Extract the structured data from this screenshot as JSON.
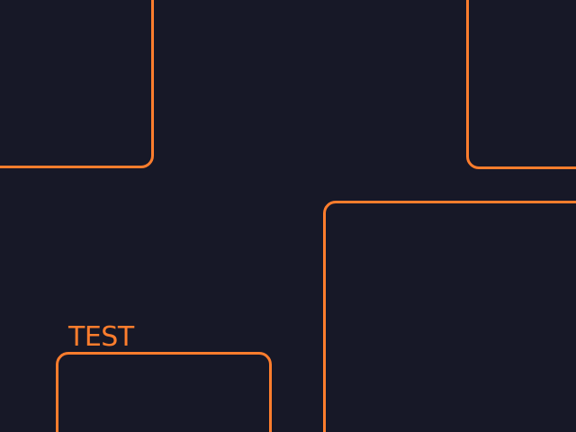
{
  "theme": {
    "background": "#171827",
    "accent": "#ff7d2d"
  },
  "panels": {
    "bottom_left": {
      "label": "TEST"
    }
  }
}
